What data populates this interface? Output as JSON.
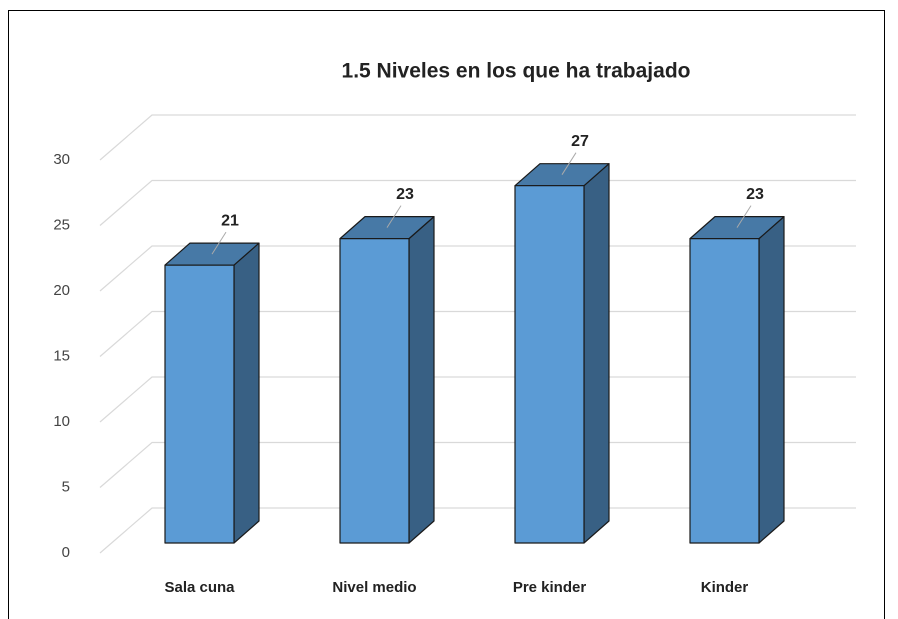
{
  "chart_data": {
    "type": "bar",
    "title": "1.5 Niveles en los que ha trabajado",
    "categories": [
      "Sala cuna",
      "Nivel medio",
      "Pre kinder",
      "Kinder"
    ],
    "values": [
      21,
      23,
      27,
      23
    ],
    "color": "#5b9bd5",
    "ylim": [
      0,
      30
    ],
    "yticks": [
      0,
      5,
      10,
      15,
      20,
      25,
      30
    ],
    "grid": true
  }
}
